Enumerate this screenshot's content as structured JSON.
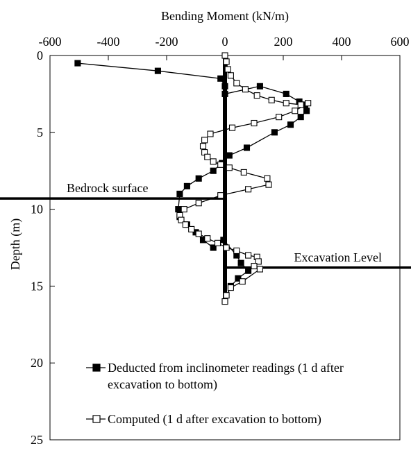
{
  "chart_data": {
    "type": "line",
    "title": "",
    "xlabel": "Bending Moment (kN/m)",
    "ylabel": "Depth (m)",
    "xlim": [
      -600,
      600
    ],
    "ylim": [
      0,
      25
    ],
    "y_inverted": true,
    "x_axis_position": "top",
    "x_ticks": [
      "-600",
      "-400",
      "-200",
      "0",
      "200",
      "400",
      "600"
    ],
    "y_ticks": [
      "0",
      "5",
      "10",
      "15",
      "20",
      "25"
    ],
    "grid": false,
    "legend": "bottom-left",
    "series": [
      {
        "name": "Deducted from inclinometer readings (1 d after excavation to bottom)",
        "legend_lines": [
          "Deducted from inclinometer readings (1 d after",
          "excavation to bottom)"
        ],
        "marker": "filled-square",
        "x": [
          -505,
          -230,
          -15,
          0,
          0,
          120,
          210,
          255,
          275,
          280,
          260,
          225,
          170,
          75,
          15,
          -10,
          -40,
          -90,
          -130,
          -155,
          -160,
          -155,
          -130,
          -100,
          -75,
          -40,
          -5,
          40,
          55,
          80,
          45,
          20,
          0
        ],
        "y": [
          0.5,
          1.0,
          1.5,
          2.0,
          2.5,
          2.0,
          2.5,
          3.0,
          3.2,
          3.6,
          4.0,
          4.5,
          5.0,
          6.0,
          6.5,
          7.0,
          7.5,
          8.0,
          8.5,
          9.0,
          10.0,
          10.5,
          11.0,
          11.5,
          12.0,
          12.5,
          12.0,
          13.0,
          13.5,
          14.0,
          14.5,
          15.0,
          16.0
        ]
      },
      {
        "name": "Computed (1 d after excavation to bottom)",
        "legend_lines": [
          "Computed (1 d after excavation to bottom)"
        ],
        "marker": "open-square",
        "x": [
          0,
          5,
          10,
          20,
          40,
          70,
          110,
          160,
          210,
          260,
          285,
          240,
          185,
          100,
          25,
          -50,
          -70,
          -75,
          -70,
          -60,
          -40,
          -15,
          15,
          65,
          145,
          150,
          80,
          -15,
          -90,
          -140,
          -155,
          -150,
          -135,
          -115,
          -90,
          -60,
          -25,
          5,
          40,
          80,
          110,
          115,
          100,
          120,
          60,
          20,
          5,
          0
        ],
        "y": [
          0.0,
          0.4,
          0.9,
          1.3,
          1.8,
          2.2,
          2.6,
          2.9,
          3.1,
          3.2,
          3.1,
          3.6,
          4.0,
          4.4,
          4.7,
          5.1,
          5.5,
          5.9,
          6.3,
          6.6,
          6.9,
          7.1,
          7.3,
          7.6,
          8.0,
          8.4,
          8.7,
          9.1,
          9.6,
          10.0,
          10.4,
          10.7,
          11.0,
          11.3,
          11.6,
          11.9,
          12.2,
          12.5,
          12.7,
          13.0,
          13.1,
          13.4,
          13.7,
          13.9,
          14.7,
          15.1,
          15.6,
          16.0
        ]
      }
    ],
    "reference_lines": [
      {
        "label": "Bedrock surface",
        "depth": 9.3,
        "x_range": [
          -600,
          0
        ],
        "label_anchor": "left"
      },
      {
        "label": "Excavation Level",
        "depth": 13.8,
        "x_range": [
          0,
          600
        ],
        "label_anchor": "right"
      }
    ],
    "pile_axis": {
      "x": 0,
      "depth_range": [
        0,
        16.2
      ]
    }
  }
}
